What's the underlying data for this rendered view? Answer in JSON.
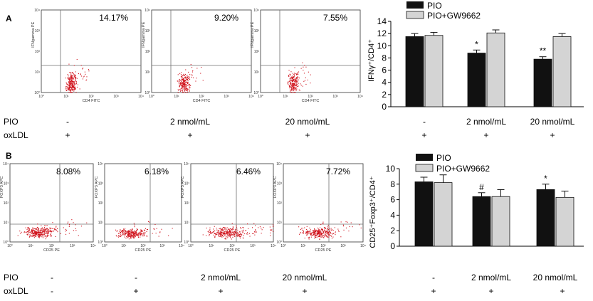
{
  "colors": {
    "dot": "#d0121b",
    "bar_dark": "#111111",
    "bar_light": "#d4d4d4",
    "axis": "#333333",
    "quad_line": "#6f6f6f"
  },
  "panelA": {
    "letter": "A",
    "flow": {
      "x_axis_label": "CD4 FITC",
      "y_axis_label": "IFNgamma PE",
      "tick_labels": [
        "10⁰",
        "10¹",
        "10²",
        "10³",
        "10⁴"
      ],
      "plots": [
        {
          "percent": "14.17%"
        },
        {
          "percent": "9.20%"
        },
        {
          "percent": "7.55%"
        }
      ]
    },
    "conditions": {
      "row1_label": "PIO",
      "row1_values": [
        "-",
        "2 nmol/mL",
        "20 nmol/mL"
      ],
      "row2_label": "oxLDL",
      "row2_values": [
        "+",
        "+",
        "+"
      ]
    },
    "bar_conditions": {
      "pio": [
        "-",
        "2 nmol/mL",
        "20 nmol/mL"
      ],
      "oxldl": [
        "+",
        "+",
        "+"
      ]
    }
  },
  "panelB": {
    "letter": "B",
    "flow": {
      "x_axis_label": "CD25 PE",
      "y_axis_label": "FOXP3 APC",
      "tick_labels": [
        "10⁰",
        "10¹",
        "10²",
        "10³",
        "10⁴"
      ],
      "plots": [
        {
          "percent": "8.08%"
        },
        {
          "percent": "6.18%"
        },
        {
          "percent": "6.46%"
        },
        {
          "percent": "7.72%"
        }
      ]
    },
    "conditions": {
      "row1_label": "PIO",
      "row1_values": [
        "-",
        "-",
        "2 nmol/mL",
        "20 nmol/mL"
      ],
      "row2_label": "oxLDL",
      "row2_values": [
        "-",
        "+",
        "+",
        "+"
      ]
    },
    "bar_conditions": {
      "pio": [
        "-",
        "2 nmol/mL",
        "20 nmol/mL"
      ],
      "oxldl": [
        "+",
        "+",
        "+"
      ]
    }
  },
  "chart_data": [
    {
      "type": "bar",
      "panel": "A",
      "categories": [
        "-",
        "2 nmol/mL",
        "20 nmol/mL"
      ],
      "series": [
        {
          "name": "PIO",
          "values": [
            11.5,
            8.8,
            7.8
          ],
          "errors": [
            0.5,
            0.5,
            0.4
          ],
          "color": "#111111"
        },
        {
          "name": "PIO+GW9662",
          "values": [
            11.7,
            12.1,
            11.5
          ],
          "errors": [
            0.5,
            0.5,
            0.5
          ],
          "color": "#d4d4d4"
        }
      ],
      "annotations": [
        {
          "series": 0,
          "category": 1,
          "text": "*"
        },
        {
          "series": 0,
          "category": 2,
          "text": "**"
        }
      ],
      "xlabel": "",
      "ylabel": "IFNγ⁺/CD4⁺",
      "ylim": [
        0,
        14
      ],
      "yticks": [
        0,
        2,
        4,
        6,
        8,
        10,
        12,
        14
      ],
      "legend": "top"
    },
    {
      "type": "bar",
      "panel": "B",
      "categories": [
        "-",
        "2 nmol/mL",
        "20 nmol/mL"
      ],
      "series": [
        {
          "name": "PIO",
          "values": [
            8.3,
            6.4,
            7.3
          ],
          "errors": [
            0.6,
            0.5,
            0.7
          ],
          "color": "#111111"
        },
        {
          "name": "PIO+GW9662",
          "values": [
            8.2,
            6.4,
            6.3
          ],
          "errors": [
            1.0,
            0.9,
            0.8
          ],
          "color": "#d4d4d4"
        }
      ],
      "annotations": [
        {
          "series": 0,
          "category": 1,
          "text": "#"
        },
        {
          "series": 0,
          "category": 2,
          "text": "*"
        }
      ],
      "xlabel": "",
      "ylabel": "CD25⁺Foxp3⁺/CD4⁺",
      "ylim": [
        0,
        10
      ],
      "yticks": [
        0,
        2,
        4,
        6,
        8,
        10
      ],
      "legend": "top"
    }
  ]
}
